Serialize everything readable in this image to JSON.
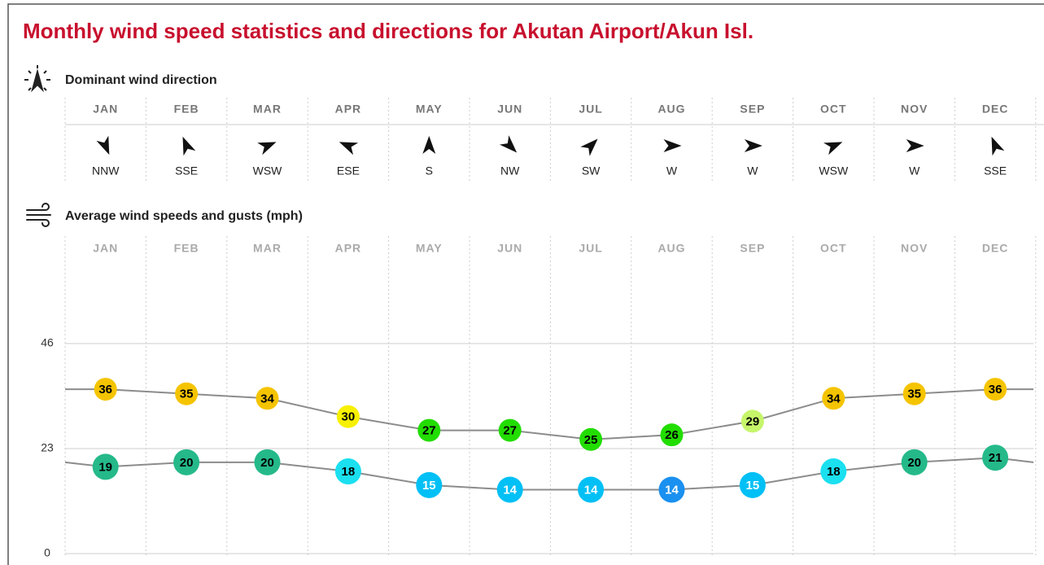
{
  "title": "Monthly wind speed statistics and directions for Akutan Airport/Akun Isl.",
  "direction": {
    "heading": "Dominant wind direction",
    "months": [
      "JAN",
      "FEB",
      "MAR",
      "APR",
      "MAY",
      "JUN",
      "JUL",
      "AUG",
      "SEP",
      "OCT",
      "NOV",
      "DEC"
    ],
    "directions": [
      "NNW",
      "SSE",
      "WSW",
      "ESE",
      "S",
      "NW",
      "SW",
      "W",
      "W",
      "WSW",
      "W",
      "SSE"
    ]
  },
  "chart_data": {
    "type": "line",
    "title": "Average wind speeds and gusts (mph)",
    "categories": [
      "JAN",
      "FEB",
      "MAR",
      "APR",
      "MAY",
      "JUN",
      "JUL",
      "AUG",
      "SEP",
      "OCT",
      "NOV",
      "DEC"
    ],
    "line_color": "#8c8c8c",
    "series": [
      {
        "values": [
          36,
          35,
          34,
          30,
          27,
          27,
          25,
          26,
          29,
          34,
          35,
          36
        ],
        "point_colors": [
          "#f5c400",
          "#f5c400",
          "#f5c400",
          "#f7f000",
          "#22dd00",
          "#22dd00",
          "#22dd00",
          "#22dd00",
          "#c6f56a",
          "#f5c400",
          "#f5c400",
          "#f5c400"
        ],
        "label_colors": [
          "#000",
          "#000",
          "#000",
          "#000",
          "#000",
          "#000",
          "#000",
          "#000",
          "#000",
          "#000",
          "#000",
          "#000"
        ]
      },
      {
        "values": [
          19,
          20,
          20,
          18,
          15,
          14,
          14,
          14,
          15,
          18,
          20,
          21
        ],
        "point_colors": [
          "#25b98a",
          "#25b98a",
          "#25b98a",
          "#1ae0f0",
          "#00c0f5",
          "#00c0f5",
          "#00c0f5",
          "#1a90f0",
          "#00c0f5",
          "#1ae0f0",
          "#25b98a",
          "#25b98a"
        ],
        "label_colors": [
          "#000",
          "#000",
          "#000",
          "#000",
          "#fff",
          "#fff",
          "#fff",
          "#fff",
          "#fff",
          "#000",
          "#000",
          "#000"
        ]
      }
    ],
    "ylim": [
      0,
      46
    ],
    "yticks": [
      0,
      23,
      46
    ],
    "grid": true
  }
}
